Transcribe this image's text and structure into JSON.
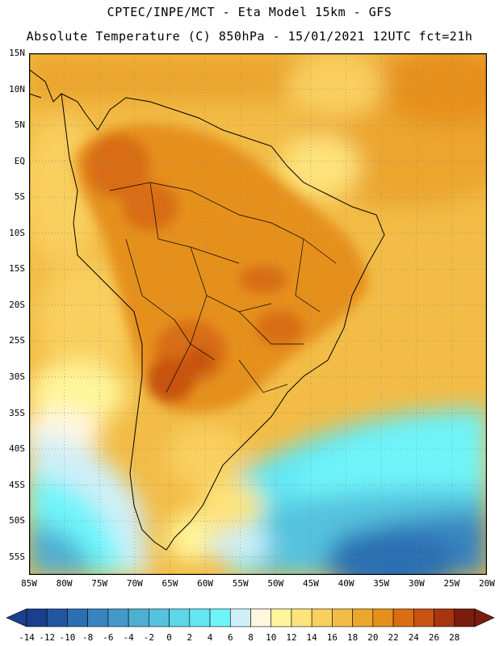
{
  "header": {
    "line1": "CPTEC/INPE/MCT -  Eta Model 15km - GFS",
    "line2": "Absolute Temperature (C) 850hPa - 15/01/2021 12UTC fct=21h"
  },
  "axes": {
    "lat_labels": [
      "15N",
      "10N",
      "5N",
      "EQ",
      "5S",
      "10S",
      "15S",
      "20S",
      "25S",
      "30S",
      "35S",
      "40S",
      "45S",
      "50S",
      "55S"
    ],
    "lon_labels": [
      "85W",
      "80W",
      "75W",
      "70W",
      "65W",
      "60W",
      "55W",
      "50W",
      "45W",
      "40W",
      "35W",
      "30W",
      "25W",
      "20W"
    ],
    "lat_range": [
      15,
      -57.5
    ],
    "lon_range": [
      -85,
      -20
    ]
  },
  "colorbar": {
    "labels": [
      "-14",
      "-12",
      "-10",
      "-8",
      "-6",
      "-4",
      "-2",
      "0",
      "2",
      "4",
      "6",
      "8",
      "10",
      "12",
      "14",
      "16",
      "18",
      "20",
      "22",
      "24",
      "26",
      "28"
    ],
    "colors": [
      "#1a3f8e",
      "#2256a0",
      "#2c6fb2",
      "#3784c0",
      "#4399c8",
      "#4eafd3",
      "#55c3de",
      "#5cd6e8",
      "#63e6f2",
      "#6ff4fa",
      "#cfeff8",
      "#fff6e0",
      "#fff59a",
      "#fde37a",
      "#f9cf5e",
      "#f2bc46",
      "#eca62e",
      "#e6901c",
      "#d86d12",
      "#c85210",
      "#a83410",
      "#7a1c0e"
    ]
  },
  "colors": {
    "frame": "#000000",
    "land_border": "#000000",
    "grid": "#888888"
  }
}
